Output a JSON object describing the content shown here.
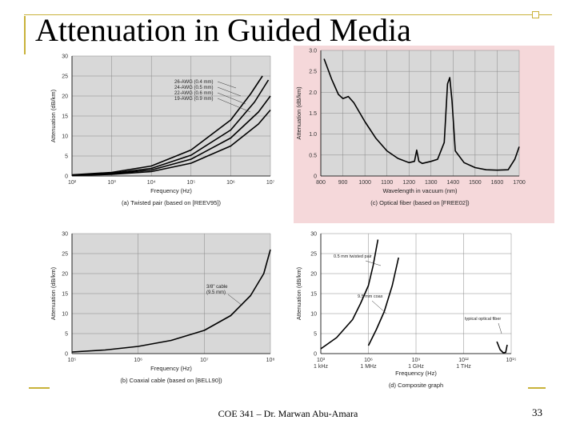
{
  "slide": {
    "title": "Attenuation in Guided Media",
    "footer": "COE 341 – Dr. Marwan Abu-Amara",
    "page_number": "33"
  },
  "colors": {
    "accent": "#c9b23a",
    "plot_bg": "#d8d8d8",
    "fiber_bg": "#f5d8da",
    "curve": "#000000"
  },
  "chart_data": [
    {
      "id": "a",
      "type": "line",
      "caption": "(a) Twisted pair (based on [REEV95])",
      "xlabel": "Frequency (Hz)",
      "ylabel": "Attenuation (dB/km)",
      "xscale": "log",
      "xlim_exp": [
        2,
        7
      ],
      "ylim": [
        0,
        30
      ],
      "xticks": [
        "10²",
        "10³",
        "10⁴",
        "10⁵",
        "10⁶",
        "10⁷"
      ],
      "yticks": [
        "0",
        "5",
        "10",
        "15",
        "20",
        "25",
        "30"
      ],
      "legend": [
        "26-AWG (0.4 mm)",
        "24-AWG (0.5 mm)",
        "22-AWG (0.6 mm)",
        "19-AWG (0.9 mm)"
      ],
      "series": [
        {
          "name": "26-AWG (0.4 mm)",
          "points": [
            [
              2,
              0.3
            ],
            [
              3,
              0.9
            ],
            [
              4,
              2.5
            ],
            [
              5,
              6.5
            ],
            [
              6,
              14
            ],
            [
              6.5,
              20.5
            ],
            [
              6.8,
              25
            ]
          ]
        },
        {
          "name": "24-AWG (0.5 mm)",
          "points": [
            [
              2,
              0.25
            ],
            [
              3,
              0.7
            ],
            [
              4,
              1.9
            ],
            [
              5,
              5.2
            ],
            [
              6,
              11.5
            ],
            [
              6.6,
              18.5
            ],
            [
              6.95,
              24
            ]
          ]
        },
        {
          "name": "22-AWG (0.6 mm)",
          "points": [
            [
              2,
              0.2
            ],
            [
              3,
              0.55
            ],
            [
              4,
              1.5
            ],
            [
              5,
              4.2
            ],
            [
              6,
              9.5
            ],
            [
              6.7,
              16
            ],
            [
              7,
              20
            ]
          ]
        },
        {
          "name": "19-AWG (0.9 mm)",
          "points": [
            [
              2,
              0.15
            ],
            [
              3,
              0.4
            ],
            [
              4,
              1.1
            ],
            [
              5,
              3.2
            ],
            [
              6,
              7.5
            ],
            [
              6.7,
              13
            ],
            [
              7,
              16.5
            ]
          ]
        }
      ]
    },
    {
      "id": "c",
      "type": "line",
      "caption": "(c) Optical fiber (based on [FREE02])",
      "xlabel": "Wavelength in vacuum (nm)",
      "ylabel": "Attenuation (dB/km)",
      "xscale": "linear",
      "xlim": [
        800,
        1700
      ],
      "ylim": [
        0,
        3.0
      ],
      "xticks": [
        "800",
        "900",
        "1000",
        "1100",
        "1200",
        "1300",
        "1400",
        "1500",
        "1600",
        "1700"
      ],
      "yticks": [
        "0",
        "0.5",
        "1.0",
        "1.5",
        "2.0",
        "2.5",
        "3.0"
      ],
      "series": [
        {
          "name": "fiber",
          "points": [
            [
              815,
              2.8
            ],
            [
              850,
              2.3
            ],
            [
              880,
              1.95
            ],
            [
              900,
              1.85
            ],
            [
              925,
              1.9
            ],
            [
              950,
              1.75
            ],
            [
              1000,
              1.3
            ],
            [
              1050,
              0.9
            ],
            [
              1100,
              0.6
            ],
            [
              1150,
              0.42
            ],
            [
              1200,
              0.32
            ],
            [
              1225,
              0.35
            ],
            [
              1235,
              0.62
            ],
            [
              1245,
              0.35
            ],
            [
              1260,
              0.3
            ],
            [
              1300,
              0.35
            ],
            [
              1330,
              0.4
            ],
            [
              1360,
              0.8
            ],
            [
              1375,
              2.2
            ],
            [
              1385,
              2.35
            ],
            [
              1395,
              1.8
            ],
            [
              1410,
              0.6
            ],
            [
              1450,
              0.32
            ],
            [
              1500,
              0.2
            ],
            [
              1550,
              0.15
            ],
            [
              1600,
              0.14
            ],
            [
              1650,
              0.15
            ],
            [
              1680,
              0.4
            ],
            [
              1700,
              0.7
            ]
          ]
        }
      ]
    },
    {
      "id": "b",
      "type": "line",
      "caption": "(b) Coaxial cable (based on [BELL90])",
      "xlabel": "Frequency (Hz)",
      "ylabel": "Attenuation (dB/km)",
      "xscale": "log",
      "xlim_exp": [
        5,
        8
      ],
      "ylim": [
        0,
        30
      ],
      "xticks": [
        "10⁵",
        "10⁶",
        "10⁷",
        "10⁸"
      ],
      "yticks": [
        "0",
        "5",
        "10",
        "15",
        "20",
        "25",
        "30"
      ],
      "annotations": [
        "3/8\" cable",
        "(9.5 mm)"
      ],
      "series": [
        {
          "name": "3/8\" cable (9.5 mm)",
          "points": [
            [
              5,
              0.4
            ],
            [
              5.5,
              0.9
            ],
            [
              6,
              1.8
            ],
            [
              6.5,
              3.3
            ],
            [
              7,
              5.8
            ],
            [
              7.4,
              9.5
            ],
            [
              7.7,
              14.5
            ],
            [
              7.9,
              20
            ],
            [
              8,
              26
            ]
          ]
        }
      ]
    },
    {
      "id": "d",
      "type": "line",
      "caption": "(d) Composite graph",
      "xlabel": "Frequency (Hz)",
      "ylabel": "Attenuation (dB/km)",
      "xscale": "log",
      "xlim_exp": [
        3,
        15
      ],
      "ylim": [
        0,
        30
      ],
      "xticks": [
        "10³",
        "10⁶",
        "10⁹",
        "10¹²",
        "10¹⁵"
      ],
      "xtick_sub": [
        "1 kHz",
        "1 MHz",
        "1 GHz",
        "1 THz",
        ""
      ],
      "yticks": [
        "0",
        "5",
        "10",
        "15",
        "20",
        "25",
        "30"
      ],
      "annotations": [
        "0.5 mm twisted pair",
        "9.5 mm coax",
        "typical optical fiber"
      ],
      "series": [
        {
          "name": "0.5 mm twisted pair",
          "points": [
            [
              3,
              1.2
            ],
            [
              4,
              4
            ],
            [
              5,
              8.5
            ],
            [
              5.5,
              12.5
            ],
            [
              6,
              17
            ],
            [
              6.3,
              22
            ],
            [
              6.6,
              28.5
            ]
          ]
        },
        {
          "name": "9.5 mm coax",
          "points": [
            [
              6,
              2
            ],
            [
              6.5,
              6
            ],
            [
              7,
              10.5
            ],
            [
              7.5,
              17
            ],
            [
              7.9,
              24
            ]
          ]
        },
        {
          "name": "typical optical fiber",
          "points": [
            [
              14.1,
              3
            ],
            [
              14.3,
              1
            ],
            [
              14.5,
              0.2
            ],
            [
              14.65,
              0.3
            ],
            [
              14.75,
              2.2
            ]
          ]
        }
      ]
    }
  ]
}
